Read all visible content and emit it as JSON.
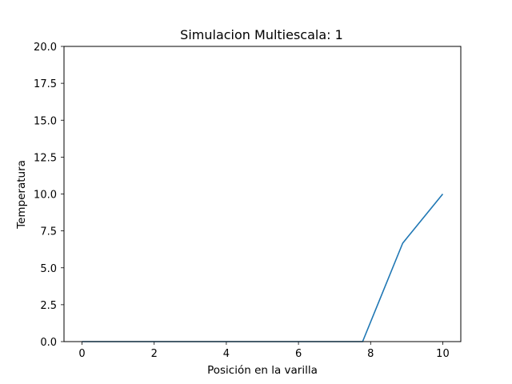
{
  "chart_data": {
    "type": "line",
    "title": "Simulacion Multiescala: 1",
    "xlabel": "Posición en la varilla",
    "ylabel": "Temperatura",
    "xlim": [
      -0.5,
      10.5
    ],
    "ylim": [
      0,
      20
    ],
    "xticks": [
      "0",
      "2",
      "4",
      "6",
      "8",
      "10"
    ],
    "yticks": [
      "0.0",
      "2.5",
      "5.0",
      "7.5",
      "10.0",
      "12.5",
      "15.0",
      "17.5",
      "20.0"
    ],
    "grid": false,
    "series": [
      {
        "color": "#1f77b4",
        "x": [
          0,
          1.111,
          2.222,
          3.333,
          4.444,
          5.556,
          6.667,
          7.778,
          8.889,
          10
        ],
        "y": [
          0,
          0,
          0,
          0,
          0,
          0,
          0,
          0,
          6.667,
          10
        ]
      }
    ]
  }
}
